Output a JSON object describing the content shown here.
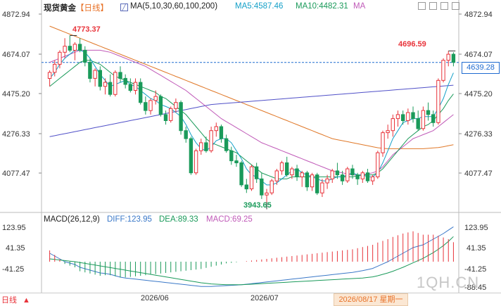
{
  "header": {
    "symbol": "现货黄金",
    "period": "【日线】",
    "ma_label": "MA(5,10,30,60,100,200)",
    "ma5_label": "MA5:4587.46",
    "ma10_label": "MA10:4482.31",
    "ma_short": "MA"
  },
  "macd_header": {
    "title": "MACD(26,12,9)",
    "diff": "DIFF:123.95",
    "dea": "DEA:89.33",
    "macd": "MACD:69.25"
  },
  "price_axis": [
    "4872.94",
    "4674.07",
    "4475.20",
    "4276.33",
    "4077.47"
  ],
  "price_axis_right": [
    "4872.94",
    "4674.07",
    "4475.20",
    "4276.33",
    "4077.47"
  ],
  "current_price": "4639.28",
  "macd_axis": [
    "123.95",
    "41.35",
    "-41.25"
  ],
  "macd_axis_right": [
    "123.95",
    "41.35",
    "-41.25",
    "-88.45"
  ],
  "annotations": {
    "high": "4773.37",
    "low": "3943.65",
    "recent_high": "4696.59"
  },
  "x_labels": [
    "2026/06",
    "2026/07"
  ],
  "date_box": "2026/08/17 星期一",
  "bottom_tab": "日线",
  "watermark": "1QH.CN",
  "colors": {
    "up": "#e8333a",
    "down": "#1a9a5a",
    "ma5": "#14a0c8",
    "ma10": "#1a9a5a",
    "ma30": "#c05ab8",
    "ma60": "#e07828",
    "ma100": "#5050c8",
    "ma200": "#5050c8",
    "diff": "#3a78c8",
    "dea": "#1a9a5a",
    "hline": "#1f6bd0"
  },
  "chart_data": {
    "type": "candlestick",
    "y_range": [
      3943.65,
      4872.94
    ],
    "candles": [
      [
        4560,
        4600,
        4520,
        4590
      ],
      [
        4590,
        4650,
        4570,
        4630
      ],
      [
        4630,
        4700,
        4610,
        4690
      ],
      [
        4690,
        4760,
        4660,
        4720
      ],
      [
        4720,
        4773.37,
        4690,
        4700
      ],
      [
        4700,
        4740,
        4650,
        4730
      ],
      [
        4730,
        4760,
        4690,
        4700
      ],
      [
        4700,
        4720,
        4620,
        4640
      ],
      [
        4640,
        4660,
        4540,
        4560
      ],
      [
        4560,
        4610,
        4520,
        4600
      ],
      [
        4600,
        4620,
        4500,
        4520
      ],
      [
        4520,
        4560,
        4480,
        4540
      ],
      [
        4540,
        4580,
        4470,
        4480
      ],
      [
        4480,
        4600,
        4470,
        4590
      ],
      [
        4590,
        4620,
        4540,
        4560
      ],
      [
        4560,
        4580,
        4510,
        4530
      ],
      [
        4530,
        4560,
        4490,
        4500
      ],
      [
        4500,
        4560,
        4480,
        4540
      ],
      [
        4540,
        4560,
        4430,
        4440
      ],
      [
        4440,
        4470,
        4380,
        4400
      ],
      [
        4400,
        4460,
        4380,
        4450
      ],
      [
        4450,
        4500,
        4430,
        4470
      ],
      [
        4470,
        4480,
        4370,
        4380
      ],
      [
        4380,
        4400,
        4330,
        4350
      ],
      [
        4350,
        4420,
        4340,
        4410
      ],
      [
        4410,
        4460,
        4390,
        4440
      ],
      [
        4440,
        4450,
        4280,
        4300
      ],
      [
        4300,
        4320,
        4240,
        4260
      ],
      [
        4260,
        4270,
        4080,
        4090
      ],
      [
        4090,
        4210,
        4080,
        4200
      ],
      [
        4200,
        4260,
        4180,
        4240
      ],
      [
        4240,
        4270,
        4190,
        4200
      ],
      [
        4200,
        4320,
        4190,
        4300
      ],
      [
        4300,
        4340,
        4270,
        4320
      ],
      [
        4320,
        4330,
        4240,
        4260
      ],
      [
        4260,
        4280,
        4190,
        4200
      ],
      [
        4200,
        4220,
        4130,
        4150
      ],
      [
        4150,
        4180,
        4120,
        4140
      ],
      [
        4140,
        4150,
        4020,
        4030
      ],
      [
        4030,
        4060,
        3990,
        4010
      ],
      [
        4010,
        4130,
        4000,
        4120
      ],
      [
        4120,
        4140,
        4040,
        4060
      ],
      [
        4060,
        4090,
        3960,
        3980
      ],
      [
        3980,
        4010,
        3943.65,
        3990
      ],
      [
        3990,
        4060,
        3980,
        4050
      ],
      [
        4050,
        4110,
        4030,
        4100
      ],
      [
        4100,
        4150,
        4080,
        4140
      ],
      [
        4140,
        4170,
        4070,
        4080
      ],
      [
        4080,
        4120,
        4060,
        4110
      ],
      [
        4110,
        4130,
        4050,
        4070
      ],
      [
        4070,
        4100,
        4020,
        4090
      ],
      [
        4090,
        4100,
        4000,
        4020
      ],
      [
        4020,
        4090,
        4000,
        4080
      ],
      [
        4080,
        4090,
        3980,
        3990
      ],
      [
        3990,
        4060,
        3970,
        4040
      ],
      [
        4040,
        4080,
        4010,
        4060
      ],
      [
        4060,
        4110,
        4040,
        4100
      ],
      [
        4100,
        4140,
        4060,
        4080
      ],
      [
        4080,
        4100,
        4030,
        4050
      ],
      [
        4050,
        4120,
        4040,
        4110
      ],
      [
        4110,
        4130,
        4060,
        4080
      ],
      [
        4080,
        4090,
        4030,
        4060
      ],
      [
        4060,
        4100,
        4040,
        4090
      ],
      [
        4090,
        4110,
        4040,
        4050
      ],
      [
        4050,
        4080,
        4030,
        4070
      ],
      [
        4070,
        4200,
        4060,
        4190
      ],
      [
        4190,
        4300,
        4170,
        4290
      ],
      [
        4290,
        4330,
        4260,
        4300
      ],
      [
        4300,
        4380,
        4270,
        4360
      ],
      [
        4360,
        4400,
        4320,
        4380
      ],
      [
        4380,
        4400,
        4330,
        4350
      ],
      [
        4350,
        4410,
        4330,
        4390
      ],
      [
        4390,
        4420,
        4340,
        4360
      ],
      [
        4360,
        4400,
        4300,
        4310
      ],
      [
        4310,
        4420,
        4300,
        4400
      ],
      [
        4400,
        4440,
        4350,
        4380
      ],
      [
        4380,
        4400,
        4320,
        4340
      ],
      [
        4340,
        4560,
        4330,
        4550
      ],
      [
        4550,
        4660,
        4540,
        4650
      ],
      [
        4650,
        4696.59,
        4620,
        4680
      ],
      [
        4680,
        4690,
        4620,
        4639.28
      ]
    ],
    "ma5": [
      4560,
      4590,
      4630,
      4660,
      4680,
      4700,
      4700,
      4690,
      4660,
      4620,
      4580,
      4550,
      4520,
      4530,
      4540,
      4550,
      4530,
      4520,
      4500,
      4480,
      4460,
      4450,
      4430,
      4420,
      4410,
      4390,
      4370,
      4330,
      4280,
      4240,
      4210,
      4200,
      4220,
      4250,
      4260,
      4260,
      4240,
      4200,
      4160,
      4110,
      4080,
      4070,
      4050,
      4030,
      4030,
      4040,
      4060,
      4080,
      4100,
      4110,
      4090,
      4080,
      4070,
      4060,
      4050,
      4050,
      4060,
      4070,
      4070,
      4080,
      4090,
      4080,
      4080,
      4070,
      4070,
      4090,
      4140,
      4200,
      4260,
      4300,
      4340,
      4350,
      4360,
      4360,
      4370,
      4370,
      4370,
      4410,
      4460,
      4530,
      4587.46
    ],
    "ma10": [
      4520,
      4540,
      4560,
      4580,
      4600,
      4620,
      4640,
      4650,
      4650,
      4640,
      4630,
      4610,
      4590,
      4570,
      4560,
      4550,
      4540,
      4530,
      4520,
      4510,
      4500,
      4490,
      4470,
      4460,
      4440,
      4420,
      4400,
      4380,
      4350,
      4320,
      4290,
      4260,
      4240,
      4230,
      4220,
      4210,
      4200,
      4190,
      4170,
      4150,
      4130,
      4110,
      4090,
      4080,
      4070,
      4060,
      4060,
      4060,
      4070,
      4070,
      4070,
      4070,
      4070,
      4070,
      4070,
      4070,
      4070,
      4070,
      4070,
      4070,
      4070,
      4075,
      4080,
      4080,
      4080,
      4090,
      4110,
      4140,
      4170,
      4200,
      4230,
      4260,
      4280,
      4300,
      4320,
      4330,
      4350,
      4380,
      4410,
      4450,
      4482.31
    ],
    "ma30": [
      4640,
      4650,
      4660,
      4670,
      4680,
      4690,
      4700,
      4700,
      4700,
      4700,
      4700,
      4695,
      4690,
      4680,
      4670,
      4660,
      4650,
      4640,
      4630,
      4620,
      4605,
      4590,
      4575,
      4560,
      4545,
      4530,
      4515,
      4500,
      4480,
      4460,
      4440,
      4420,
      4400,
      4380,
      4360,
      4345,
      4330,
      4315,
      4300,
      4285,
      4270,
      4255,
      4240,
      4230,
      4220,
      4210,
      4200,
      4190,
      4180,
      4170,
      4160,
      4150,
      4140,
      4130,
      4120,
      4110,
      4100,
      4095,
      4090,
      4085,
      4080,
      4080,
      4080,
      4085,
      4090,
      4100,
      4120,
      4150,
      4180,
      4200,
      4220,
      4240,
      4260,
      4270,
      4280,
      4290,
      4300,
      4320,
      4340,
      4360,
      4380
    ],
    "ma60": [
      4820,
      4810,
      4800,
      4790,
      4780,
      4770,
      4760,
      4750,
      4740,
      4730,
      4720,
      4710,
      4700,
      4690,
      4680,
      4670,
      4660,
      4650,
      4640,
      4630,
      4620,
      4610,
      4600,
      4590,
      4580,
      4570,
      4560,
      4550,
      4540,
      4530,
      4520,
      4510,
      4500,
      4490,
      4480,
      4470,
      4460,
      4450,
      4440,
      4430,
      4420,
      4410,
      4400,
      4390,
      4380,
      4370,
      4360,
      4350,
      4340,
      4330,
      4320,
      4310,
      4300,
      4290,
      4280,
      4270,
      4260,
      4255,
      4250,
      4245,
      4240,
      4235,
      4230,
      4225,
      4220,
      4215,
      4212,
      4210,
      4210,
      4210,
      4210,
      4210,
      4210,
      4210,
      4210,
      4212,
      4214,
      4216,
      4220,
      4225,
      4230
    ],
    "ma100": [
      4270,
      4275,
      4280,
      4285,
      4290,
      4295,
      4300,
      4305,
      4310,
      4315,
      4320,
      4325,
      4330,
      4335,
      4340,
      4345,
      4350,
      4355,
      4360,
      4365,
      4370,
      4375,
      4380,
      4385,
      4390,
      4395,
      4400,
      4405,
      4410,
      4415,
      4420,
      4425,
      4430,
      4432,
      4434,
      4436,
      4438,
      4440,
      4442,
      4444,
      4446,
      4448,
      4450,
      4452,
      4454,
      4456,
      4458,
      4460,
      4462,
      4464,
      4466,
      4468,
      4470,
      4472,
      4474,
      4476,
      4478,
      4480,
      4482,
      4484,
      4486,
      4488,
      4490,
      4492,
      4494,
      4496,
      4498,
      4500,
      4502,
      4504,
      4506,
      4508,
      4510,
      4512,
      4514,
      4516,
      4518,
      4520,
      4522,
      4524,
      4526
    ],
    "macd_diff": [
      30,
      20,
      10,
      0,
      -5,
      -10,
      -20,
      -25,
      -30,
      -35,
      -40,
      -42,
      -45,
      -50,
      -55,
      -58,
      -60,
      -62,
      -64,
      -66,
      -68,
      -70,
      -72,
      -74,
      -76,
      -78,
      -80,
      -82,
      -84,
      -86,
      -88,
      -88,
      -88,
      -87,
      -86,
      -85,
      -84,
      -83,
      -82,
      -80,
      -78,
      -76,
      -74,
      -72,
      -70,
      -68,
      -66,
      -64,
      -62,
      -60,
      -58,
      -56,
      -54,
      -52,
      -50,
      -48,
      -46,
      -44,
      -42,
      -40,
      -38,
      -35,
      -32,
      -28,
      -24,
      -16,
      -8,
      0,
      10,
      20,
      30,
      40,
      50,
      55,
      60,
      70,
      80,
      90,
      100,
      112,
      123.95
    ],
    "macd_dea": [
      10,
      8,
      6,
      4,
      2,
      0,
      -3,
      -6,
      -9,
      -12,
      -15,
      -18,
      -21,
      -24,
      -27,
      -30,
      -33,
      -36,
      -39,
      -42,
      -45,
      -48,
      -51,
      -54,
      -57,
      -60,
      -63,
      -66,
      -69,
      -72,
      -75,
      -77,
      -79,
      -80,
      -81,
      -82,
      -82,
      -82,
      -82,
      -81,
      -80,
      -79,
      -78,
      -77,
      -76,
      -75,
      -74,
      -73,
      -72,
      -71,
      -70,
      -69,
      -68,
      -67,
      -66,
      -65,
      -64,
      -63,
      -62,
      -61,
      -60,
      -59,
      -58,
      -56,
      -54,
      -50,
      -45,
      -40,
      -34,
      -27,
      -20,
      -12,
      -4,
      4,
      12,
      22,
      32,
      44,
      57,
      72,
      89.33
    ],
    "macd_hist": [
      40,
      24,
      8,
      -8,
      -14,
      -20,
      -34,
      -38,
      -42,
      -46,
      -50,
      -48,
      -48,
      -52,
      -56,
      -56,
      -54,
      -52,
      -50,
      -48,
      -46,
      -44,
      -42,
      -40,
      -38,
      -36,
      -34,
      -32,
      -30,
      -28,
      -26,
      -22,
      -18,
      -14,
      -10,
      -6,
      -4,
      -2,
      0,
      2,
      4,
      6,
      8,
      10,
      12,
      14,
      16,
      18,
      20,
      22,
      24,
      26,
      28,
      30,
      32,
      34,
      36,
      38,
      40,
      42,
      44,
      48,
      52,
      56,
      60,
      68,
      74,
      80,
      88,
      94,
      100,
      104,
      108,
      102,
      96,
      96,
      96,
      92,
      86,
      80,
      69.25
    ]
  }
}
